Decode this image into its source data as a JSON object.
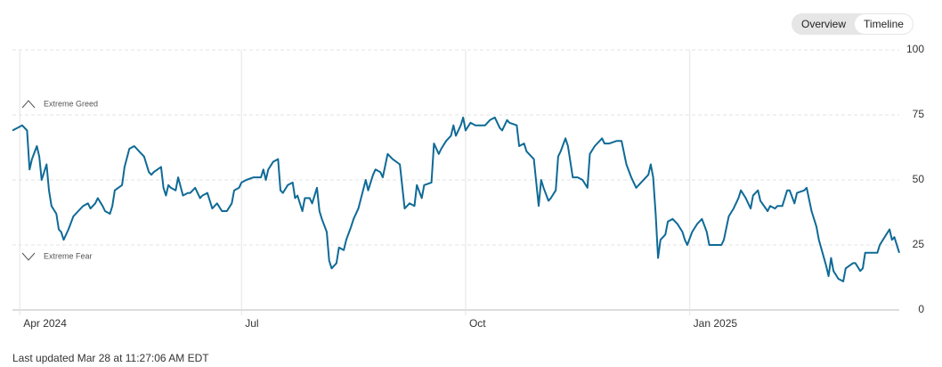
{
  "buttons": [
    "Overview",
    "Timeline"
  ],
  "selected": 1,
  "footer": "Last updated Mar 28 at 11:27:06 AM EDT",
  "chart_data": {
    "type": "line",
    "annotations": [
      {
        "text": "Extreme Greed",
        "direction": "up"
      },
      {
        "text": "Extreme Fear",
        "direction": "down"
      }
    ],
    "x": [
      -3,
      -1,
      1,
      3,
      4,
      5,
      7,
      8,
      9,
      11,
      12,
      13,
      15,
      16,
      17,
      18,
      20,
      22,
      24,
      26,
      28,
      29,
      31,
      32,
      34,
      35,
      37,
      38,
      39,
      42,
      43,
      45,
      47,
      49,
      51,
      53,
      54,
      55,
      58,
      59,
      60,
      61,
      62,
      64,
      65,
      67,
      69,
      70,
      72,
      74,
      75,
      77,
      79,
      81,
      83,
      85,
      87,
      88,
      90,
      91,
      93,
      96,
      99,
      100,
      101,
      102,
      104,
      106,
      107,
      108,
      110,
      112,
      113,
      114,
      116,
      117,
      119,
      120,
      122,
      123,
      124,
      126,
      127,
      128,
      130,
      131,
      133,
      134,
      136,
      137,
      139,
      142,
      143,
      145,
      146,
      148,
      149,
      151,
      153,
      156,
      158,
      160,
      162,
      163,
      165,
      166,
      169,
      170,
      172,
      173,
      175,
      177,
      178,
      179,
      181,
      182,
      183,
      185,
      187,
      189,
      191,
      193,
      195,
      197,
      198,
      200,
      201,
      204,
      205,
      207,
      208,
      210,
      211,
      213,
      214,
      215,
      217,
      218,
      220,
      221,
      222,
      224,
      225,
      227,
      229,
      231,
      233,
      234,
      236,
      239,
      240,
      242,
      245,
      247,
      249,
      251,
      253,
      255,
      258,
      259,
      260,
      261,
      262,
      263,
      265,
      266,
      268,
      270,
      272,
      273,
      274,
      276,
      278,
      280,
      282,
      283,
      286,
      288,
      289,
      291,
      293,
      295,
      296,
      298,
      300,
      301,
      303,
      304,
      307,
      308,
      310,
      311,
      313,
      315,
      316,
      318,
      319,
      322,
      323,
      325,
      327,
      328,
      331,
      332,
      333,
      334,
      336,
      338,
      339,
      342,
      343,
      345,
      346,
      347,
      350,
      352,
      353,
      355,
      357,
      358,
      359,
      361
    ],
    "series": [
      {
        "color": "#0f6a96",
        "values": [
          69,
          70,
          71,
          69,
          54,
          58,
          63,
          59,
          50,
          56,
          46,
          40,
          37,
          31,
          30,
          27,
          31,
          36,
          38,
          40,
          41,
          39,
          41,
          43,
          40,
          38,
          37,
          40,
          46,
          48,
          55,
          62,
          63,
          61,
          59,
          53,
          52,
          53,
          55,
          47,
          44,
          48,
          47,
          46,
          51,
          44,
          45,
          45,
          47,
          43,
          44,
          45,
          39,
          41,
          38,
          38,
          41,
          46,
          47,
          49,
          50,
          51,
          51,
          54,
          50,
          54,
          57,
          58,
          46,
          45,
          48,
          49,
          43,
          44,
          38,
          43,
          43,
          41,
          47,
          38,
          35,
          30,
          19,
          16,
          18,
          24,
          23,
          27,
          32,
          35,
          39,
          50,
          46,
          52,
          54,
          53,
          51,
          60,
          58,
          56,
          39,
          41,
          40,
          48,
          43,
          48,
          49,
          64,
          60,
          62,
          65,
          67,
          71,
          67,
          71,
          74,
          69,
          72,
          71,
          71,
          71,
          73,
          74,
          70,
          69,
          73,
          72,
          71,
          63,
          64,
          61,
          59,
          58,
          40,
          50,
          47,
          42,
          43,
          46,
          59,
          61,
          66,
          63,
          51,
          51,
          50,
          47,
          60,
          63,
          66,
          64,
          64,
          65,
          65,
          56,
          51,
          47,
          49,
          52,
          56,
          51,
          37,
          20,
          27,
          29,
          34,
          35,
          33,
          30,
          27,
          25,
          30,
          33,
          35,
          30,
          25,
          25,
          25,
          27,
          36,
          39,
          43,
          46,
          43,
          39,
          44,
          46,
          42,
          38,
          40,
          39,
          40,
          40,
          46,
          46,
          41,
          45,
          46,
          47,
          38,
          32,
          27,
          17,
          13,
          20,
          15,
          12,
          11,
          16,
          18,
          18,
          15,
          16,
          22,
          22,
          22,
          25,
          28,
          31,
          27,
          28,
          22
        ]
      }
    ],
    "xlim": [
      -3,
      361
    ],
    "xticks": [
      {
        "value": 0,
        "label": "Apr 2024"
      },
      {
        "value": 91,
        "label": "Jul"
      },
      {
        "value": 183,
        "label": "Oct"
      },
      {
        "value": 275,
        "label": "Jan 2025"
      }
    ],
    "ylim": [
      0,
      100
    ],
    "yticks": [
      0,
      25,
      50,
      75,
      100
    ],
    "grid": true
  }
}
